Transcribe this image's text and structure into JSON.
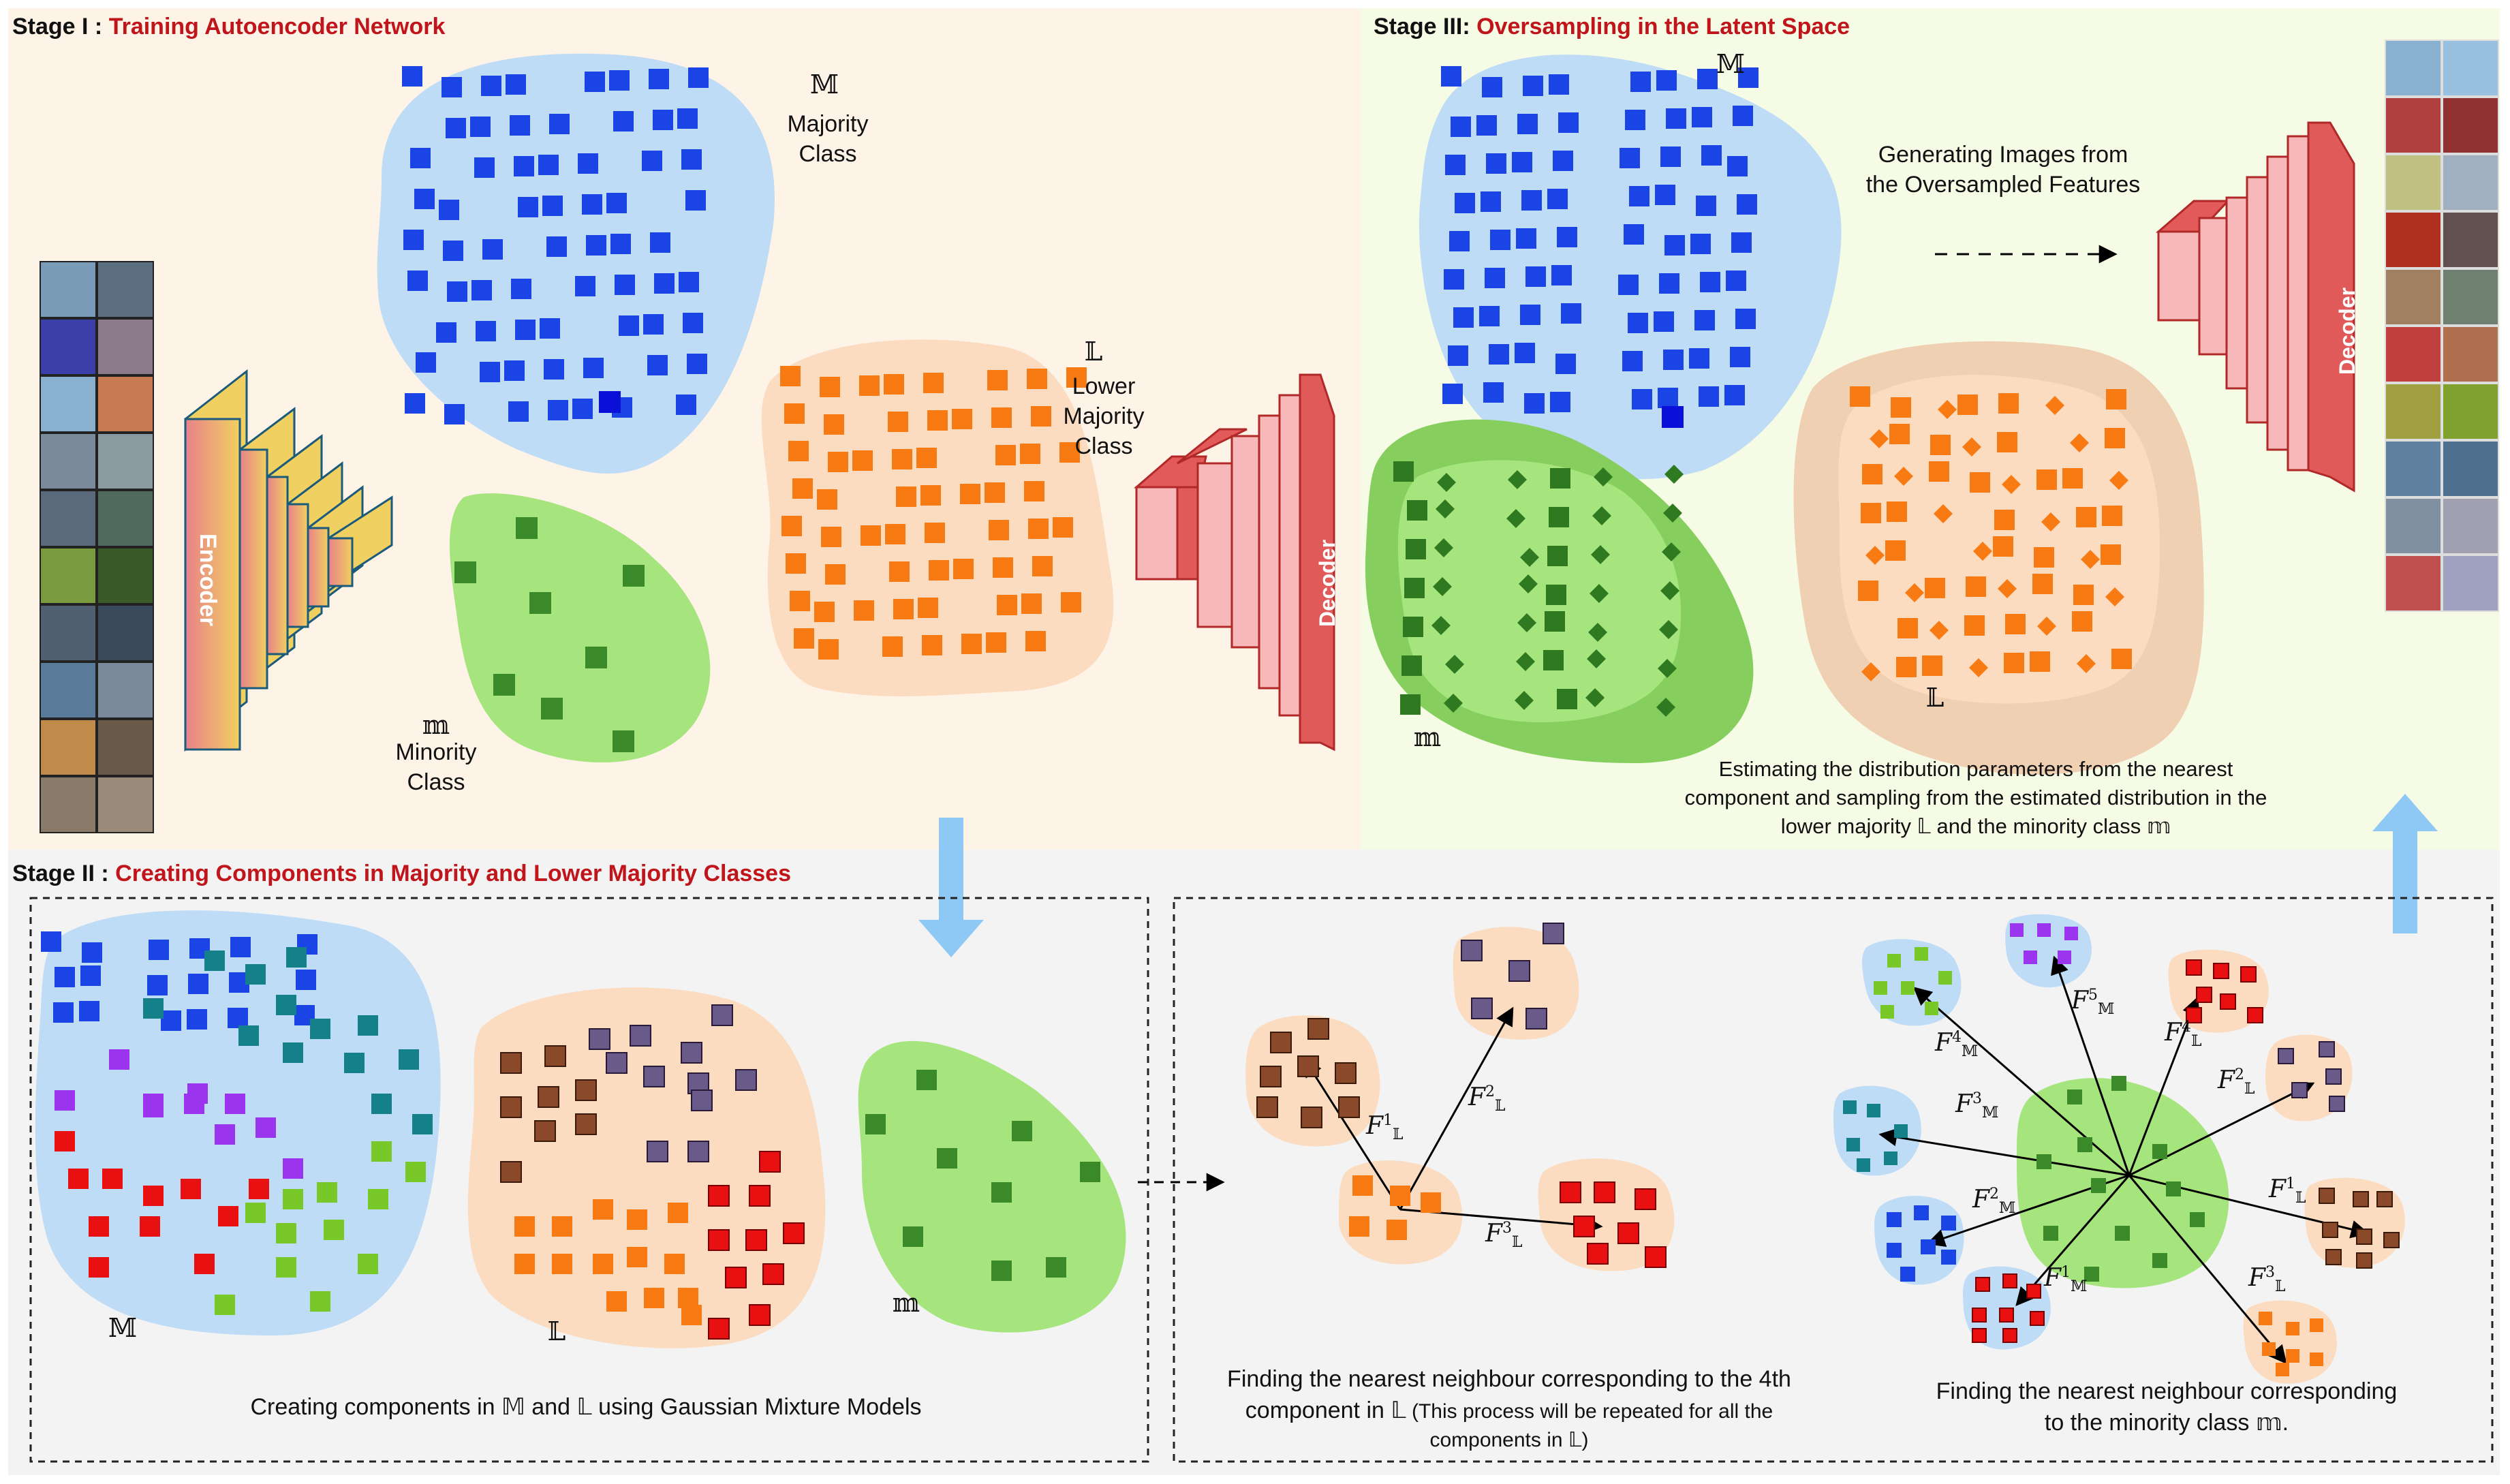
{
  "stage1": {
    "prefix": "Stage I :",
    "title": "Training Autoencoder Network"
  },
  "stage2": {
    "prefix": "Stage II :",
    "title": "Creating Components in Majority and Lower Majority Classes"
  },
  "stage3": {
    "prefix": "Stage III:",
    "title": "Oversampling in the Latent Space"
  },
  "symbols": {
    "majority": "𝕄",
    "lower": "𝕃",
    "minority": "𝕞"
  },
  "labels": {
    "majority_line1": "Majority",
    "majority_line2": "Class",
    "lower_line1": "Lower",
    "lower_line2": "Majority",
    "lower_line3": "Class",
    "minority_line1": "Minority",
    "minority_line2": "Class",
    "encoder": "Encoder",
    "decoder": "Decoder"
  },
  "stage3_text": {
    "gen_line1": "Generating Images from",
    "gen_line2": "the Oversampled Features",
    "est_line1": "Estimating the distribution parameters from the nearest",
    "est_line2": "component  and sampling from the estimated distribution in the",
    "est_line3": "lower majority 𝕃 and the minority class 𝕞"
  },
  "stage2_text": {
    "gmm_caption": "Creating components in 𝕄 and 𝕃 using Gaussian Mixture Models",
    "nn_line1": "Finding the nearest neighbour corresponding to the 4th",
    "nn_line2": "component in 𝕃",
    "nn_line2b": " (This process will be repeated for all the",
    "nn_line3": "components in 𝕃)",
    "min_line1": "Finding the nearest neighbour corresponding",
    "min_line2": "to the minority class 𝕞."
  },
  "colors": {
    "stage1_bg": "#fdf3e6",
    "stage3_bg": "#f6fbe6",
    "stage2_bg": "#f3f3f3",
    "title_red": "#c0151a",
    "blue": "#1a44e6",
    "orange": "#f77b12",
    "green": "#3b8a2a",
    "blue_blob": "#bfdcf7",
    "orange_blob": "#fcdcc0",
    "green_blob": "#a6e47e",
    "purple": "#9b34ee",
    "red": "#e81010",
    "teal": "#13808a",
    "lime": "#78c828",
    "brown": "#8a4a2a",
    "mauve": "#6a5a8a",
    "arrow_blue": "#8ec8f5"
  }
}
